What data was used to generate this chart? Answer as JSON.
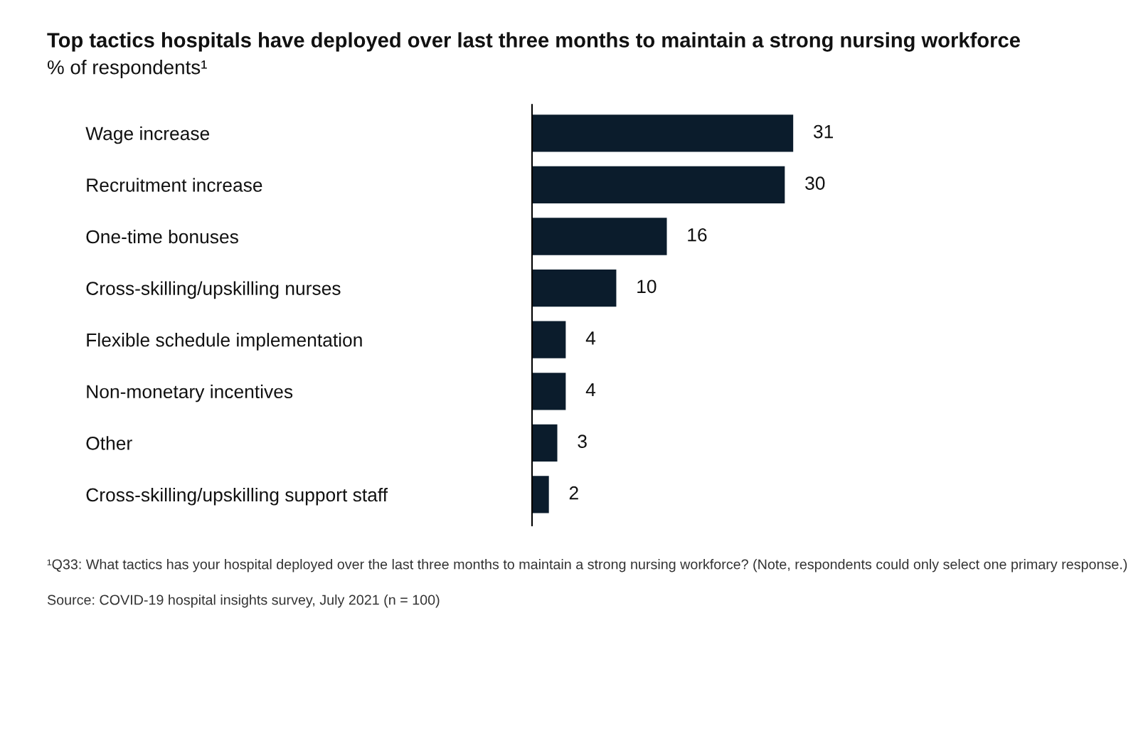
{
  "chart_data": {
    "type": "bar",
    "orientation": "horizontal",
    "title": "Top tactics hospitals have deployed over last three months to maintain a strong nursing workforce",
    "subtitle": "% of respondents¹",
    "categories": [
      "Wage increase",
      "Recruitment increase",
      "One-time bonuses",
      "Cross-skilling/upskilling nurses",
      "Flexible schedule implementation",
      "Non-monetary incentives",
      "Other",
      "Cross-skilling/upskilling support staff"
    ],
    "values": [
      31,
      30,
      16,
      10,
      4,
      4,
      3,
      2
    ],
    "color": "#0b1c2c",
    "data_labels": true,
    "tick_labels": "y",
    "grid": false,
    "legend": false,
    "annotations": [
      "¹Q33: What tactics has your hospital deployed over the last three months to maintain a strong nursing workforce? (Note, respondents could only select one primary response.)",
      "Source: COVID-19 hospital insights survey, July 2021 (n = 100)"
    ]
  }
}
